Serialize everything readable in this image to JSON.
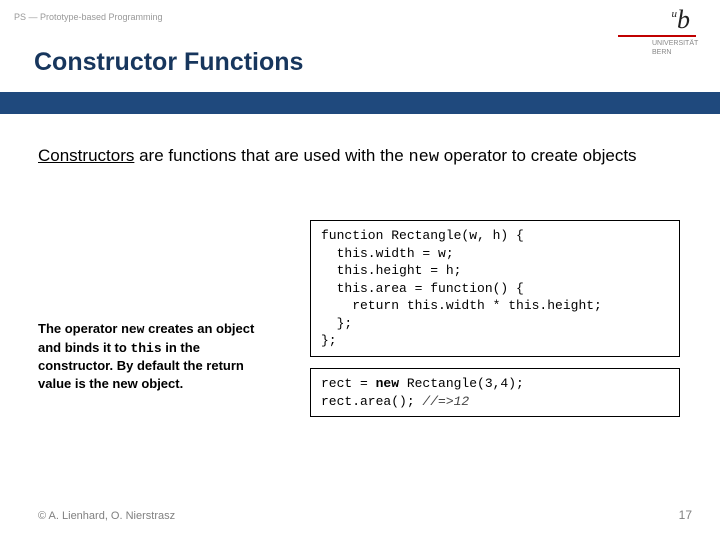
{
  "header": {
    "course_label": "PS — Prototype-based Programming",
    "title": "Constructor Functions"
  },
  "logo": {
    "u": "u",
    "b": "b",
    "line1": "UNIVERSITÄT",
    "line2": "BERN"
  },
  "intro": {
    "constructors_word": "Constructors",
    "text1": " are functions that are used with the ",
    "new_word": "new",
    "text2": " operator to create objects"
  },
  "explain": {
    "t1": "The operator ",
    "new_word": "new",
    "t2": " creates an object and binds it to ",
    "this_word": "this",
    "t3": " in the constructor. By default the return value is the new object."
  },
  "code1": {
    "l1": "function Rectangle(w, h) {",
    "l2": "  this.width = w;",
    "l3": "  this.height = h;",
    "l4": "  this.area = function() {",
    "l5": "    return this.width * this.height;",
    "l6": "  };",
    "l7": "};"
  },
  "code2": {
    "pre1": "rect = ",
    "bold": "new",
    "post1": " Rectangle(3,4);",
    "l2a": "rect.area(); ",
    "l2b": "//=>12"
  },
  "footer": {
    "credit": "© A. Lienhard, O. Nierstrasz",
    "page": "17"
  },
  "colors": {
    "title": "#17365d",
    "bar": "#1f497d",
    "logo_line": "#c00000",
    "muted": "#808080"
  }
}
